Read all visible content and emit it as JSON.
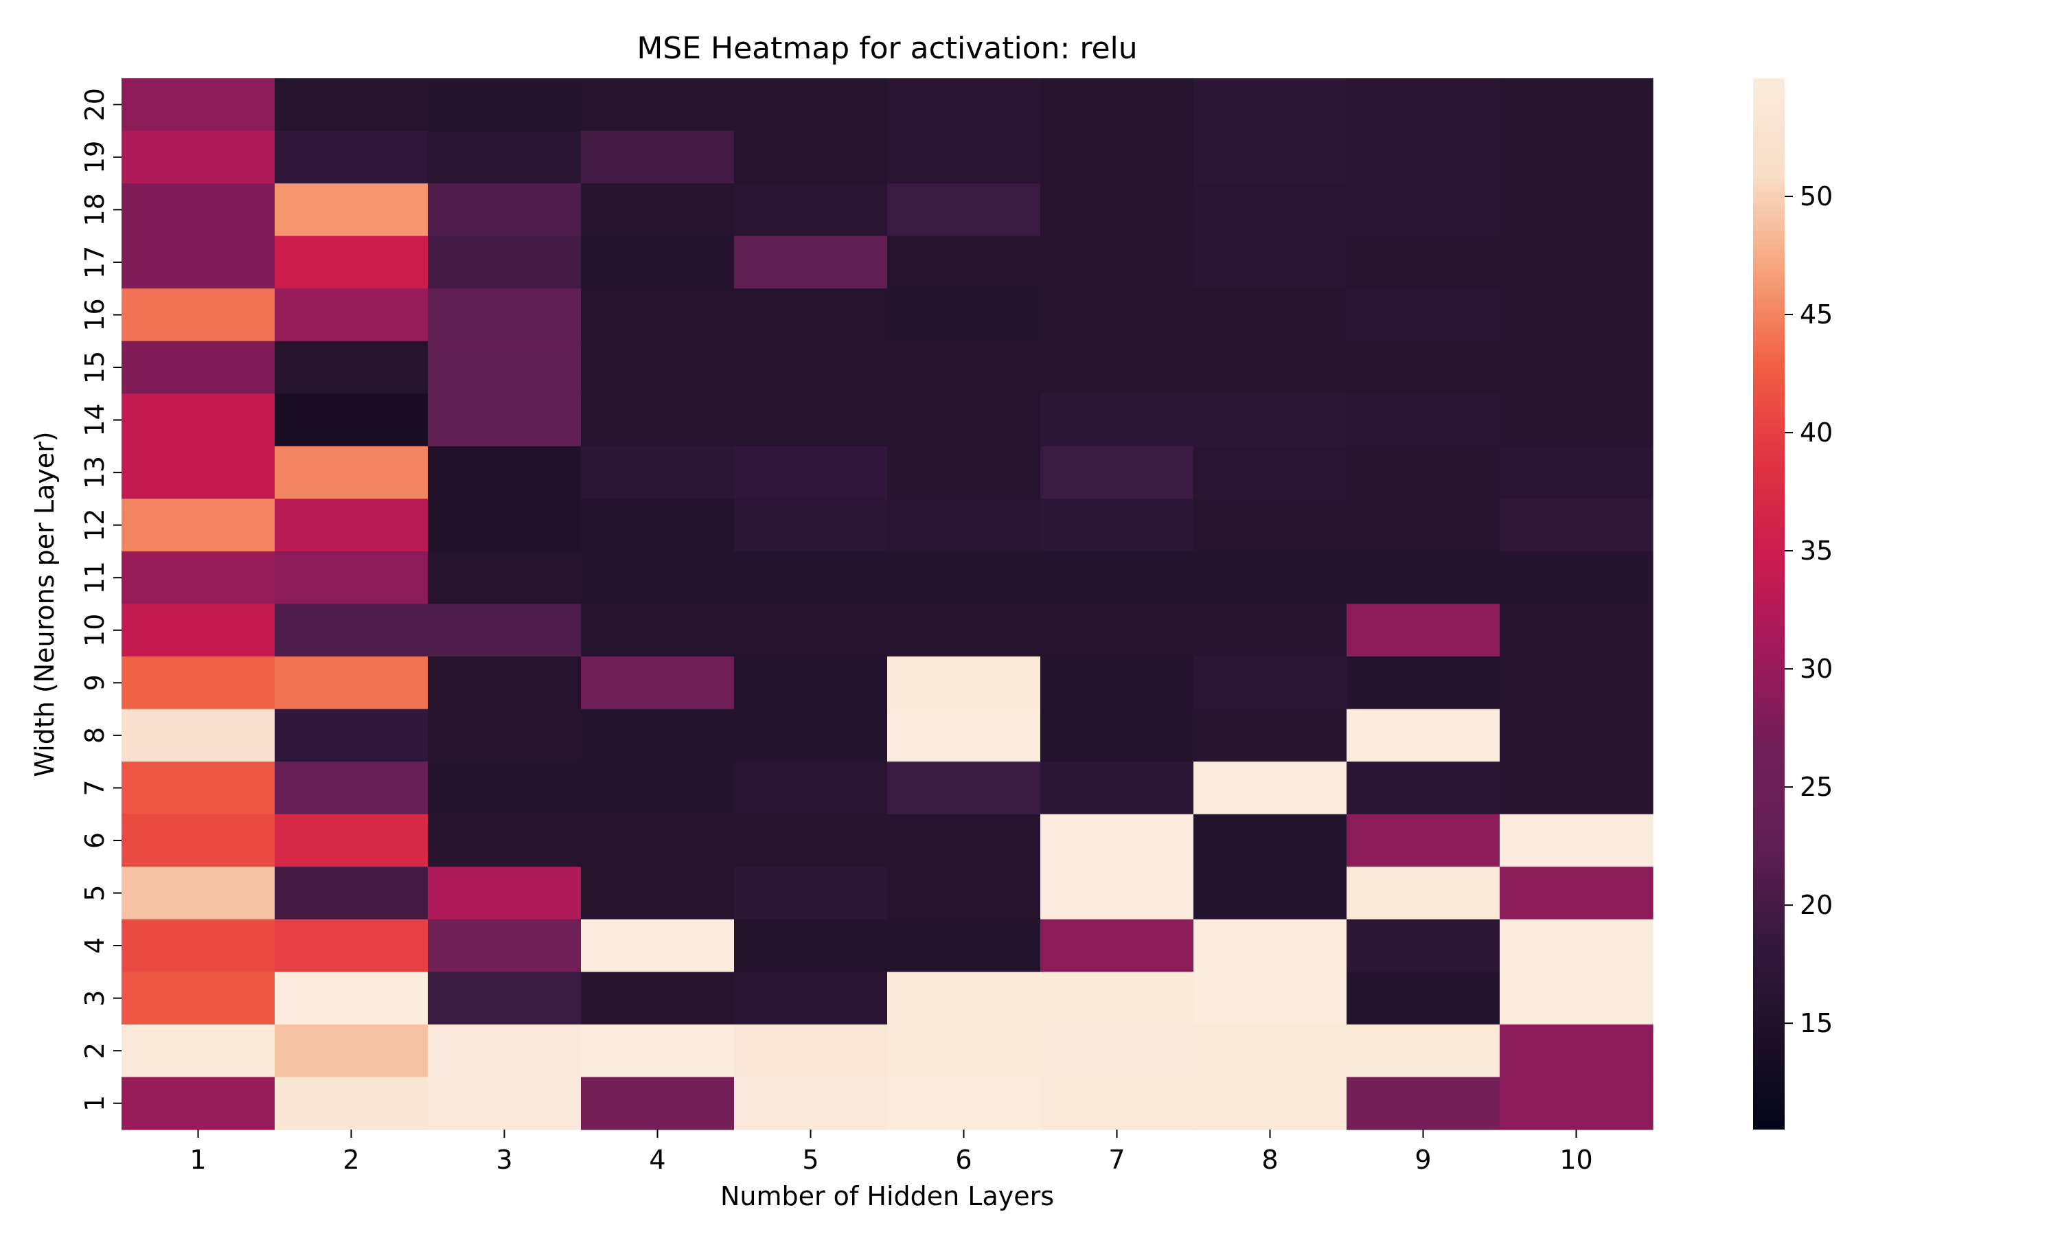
{
  "chart_data": {
    "type": "heatmap",
    "title": "MSE Heatmap for activation: relu",
    "xlabel": "Number of Hidden Layers",
    "ylabel": "Width (Neurons per Layer)",
    "x": [
      1,
      2,
      3,
      4,
      5,
      6,
      7,
      8,
      9,
      10
    ],
    "y": [
      20,
      19,
      18,
      17,
      16,
      15,
      14,
      13,
      12,
      11,
      10,
      9,
      8,
      7,
      6,
      5,
      4,
      3,
      2,
      1
    ],
    "x_tick_labels": [
      "1",
      "2",
      "3",
      "4",
      "5",
      "6",
      "7",
      "8",
      "9",
      "10"
    ],
    "y_tick_labels": [
      "20",
      "19",
      "18",
      "17",
      "16",
      "15",
      "14",
      "13",
      "12",
      "11",
      "10",
      "9",
      "8",
      "7",
      "6",
      "5",
      "4",
      "3",
      "2",
      "1"
    ],
    "values": [
      [
        29,
        16,
        15.5,
        16,
        16,
        16.5,
        16,
        17,
        16.5,
        16
      ],
      [
        32,
        18,
        16.5,
        20,
        16,
        16.5,
        16,
        17,
        16.5,
        16
      ],
      [
        28,
        46,
        21,
        16,
        16.5,
        19,
        16,
        16.5,
        16.5,
        16
      ],
      [
        28,
        35,
        20,
        15.5,
        23,
        16,
        16,
        16.5,
        16,
        16
      ],
      [
        44,
        30,
        23,
        16,
        16,
        15.5,
        16,
        16,
        16.5,
        16
      ],
      [
        28,
        16,
        23,
        16,
        16,
        16,
        16,
        16,
        16,
        16
      ],
      [
        34,
        14,
        23,
        16,
        16,
        16,
        17,
        17,
        16.5,
        16
      ],
      [
        34,
        45,
        15,
        17,
        18,
        16,
        19,
        16.5,
        16,
        16.5
      ],
      [
        45,
        33,
        15,
        15.5,
        17,
        16.5,
        17,
        16,
        16,
        17.5
      ],
      [
        30,
        29,
        16,
        15.5,
        15.5,
        15.5,
        15.5,
        15.5,
        15.5,
        15.5
      ],
      [
        34,
        21,
        21,
        16,
        16,
        16,
        16,
        16,
        29,
        16
      ],
      [
        43,
        44,
        16,
        26,
        15.5,
        54,
        15.5,
        17,
        15.5,
        16
      ],
      [
        52,
        18,
        16,
        15.5,
        15.5,
        55,
        15.5,
        16,
        55,
        16
      ],
      [
        42,
        24,
        15.5,
        15.5,
        16.5,
        19,
        17,
        55,
        16.5,
        16
      ],
      [
        41,
        37,
        16,
        16,
        16,
        16,
        55,
        15.5,
        29,
        55
      ],
      [
        49,
        20,
        32,
        16,
        17,
        16,
        55,
        15.5,
        54,
        29
      ],
      [
        41,
        40,
        26,
        55,
        15.5,
        15.5,
        29,
        55,
        17,
        55
      ],
      [
        42,
        55,
        19,
        16,
        16.5,
        54,
        54,
        55,
        15.5,
        55
      ],
      [
        54,
        49,
        54.5,
        55,
        53.5,
        54,
        54.5,
        54,
        54,
        29
      ],
      [
        30,
        53,
        54.5,
        27,
        54.5,
        55,
        54,
        54,
        27,
        29
      ]
    ],
    "colorbar": {
      "min": 10.5,
      "max": 55,
      "ticks": [
        15,
        20,
        25,
        30,
        35,
        40,
        45,
        50
      ],
      "colormap": "rocket",
      "stops": [
        "#03051a",
        "#1d1127",
        "#35193e",
        "#611f53",
        "#701f57",
        "#a11a5b",
        "#cb1b4f",
        "#e13342",
        "#f06043",
        "#f6a47c",
        "#f8dec8",
        "#faebdd"
      ]
    },
    "grid": false,
    "legend": "colorbar-right"
  }
}
